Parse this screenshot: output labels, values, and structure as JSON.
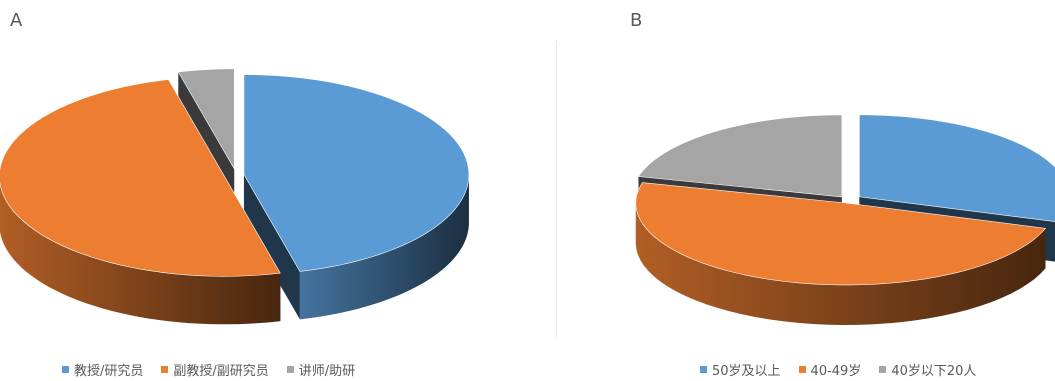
{
  "chart_data": [
    {
      "type": "pie",
      "panel_label": "A",
      "style": "3d-exploded",
      "categories": [
        "教授/研究员",
        "副教授/副研究员",
        "讲师/助研"
      ],
      "values": [
        46,
        50,
        4
      ],
      "colors": [
        "#5b9bd5",
        "#ed7d31",
        "#a5a5a5"
      ],
      "legend": "bottom"
    },
    {
      "type": "pie",
      "panel_label": "B",
      "style": "3d-exploded",
      "categories": [
        "50岁及以上",
        "40-49岁",
        "40岁以下20人"
      ],
      "values": [
        30,
        49,
        21
      ],
      "colors": [
        "#5b9bd5",
        "#ed7d31",
        "#a5a5a5"
      ],
      "legend": "bottom"
    }
  ]
}
